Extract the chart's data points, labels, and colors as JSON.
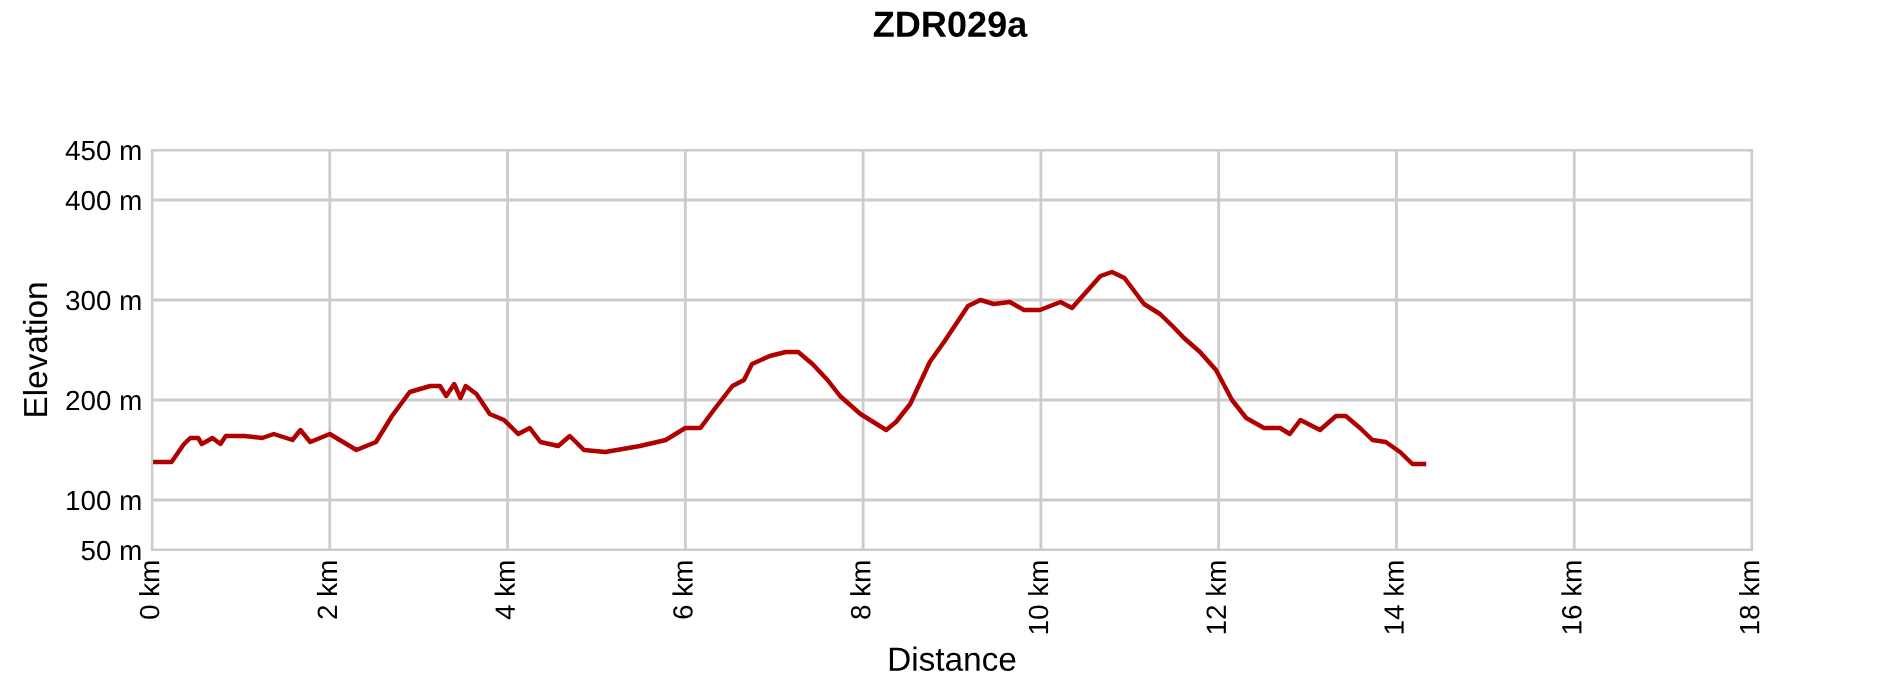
{
  "chart_data": {
    "type": "line",
    "title": "ZDR029a",
    "xlabel": "Distance",
    "ylabel": "Elevation",
    "x": [
      0,
      0.22,
      0.36,
      0.43,
      0.52,
      0.56,
      0.68,
      0.77,
      0.83,
      1.04,
      1.24,
      1.37,
      1.58,
      1.67,
      1.78,
      2.0,
      2.3,
      2.52,
      2.7,
      2.9,
      3.13,
      3.24,
      3.31,
      3.4,
      3.47,
      3.53,
      3.65,
      3.8,
      3.96,
      4.12,
      4.25,
      4.37,
      4.57,
      4.7,
      4.86,
      5.1,
      5.49,
      5.78,
      6.0,
      6.17,
      6.32,
      6.53,
      6.66,
      6.75,
      6.95,
      7.13,
      7.27,
      7.43,
      7.6,
      7.74,
      7.97,
      8.26,
      8.37,
      8.53,
      8.75,
      8.91,
      9.18,
      9.32,
      9.47,
      9.65,
      9.81,
      9.99,
      10.22,
      10.35,
      10.67,
      10.8,
      10.94,
      11.16,
      11.34,
      11.48,
      11.61,
      11.79,
      11.97,
      12.15,
      12.31,
      12.51,
      12.69,
      12.8,
      12.92,
      13.14,
      13.32,
      13.43,
      13.59,
      13.73,
      13.88,
      14.04,
      14.18,
      14.31
    ],
    "series": [
      {
        "color": "#b00000",
        "values": [
          138,
          138,
          156,
          162,
          162,
          156,
          162,
          156,
          164,
          164,
          162,
          166,
          160,
          170,
          158,
          166,
          150,
          158,
          184,
          208,
          214,
          214,
          204,
          216,
          202,
          214,
          206,
          186,
          180,
          166,
          172,
          158,
          154,
          164,
          150,
          148,
          154,
          160,
          172,
          172,
          190,
          214,
          220,
          236,
          244,
          248,
          248,
          236,
          220,
          204,
          186,
          170,
          178,
          196,
          238,
          258,
          294,
          300,
          296,
          298,
          290,
          290,
          298,
          292,
          324,
          328,
          322,
          296,
          286,
          274,
          262,
          248,
          230,
          200,
          182,
          172,
          172,
          166,
          180,
          170,
          184,
          184,
          172,
          160,
          158,
          148,
          136,
          136
        ]
      }
    ],
    "xlim": [
      0,
      18
    ],
    "xticks": [
      {
        "value": 0,
        "label": "0 km"
      },
      {
        "value": 2,
        "label": "2 km"
      },
      {
        "value": 4,
        "label": "4 km"
      },
      {
        "value": 6,
        "label": "6 km"
      },
      {
        "value": 8,
        "label": "8 km"
      },
      {
        "value": 10,
        "label": "10 km"
      },
      {
        "value": 12,
        "label": "12 km"
      },
      {
        "value": 14,
        "label": "14 km"
      },
      {
        "value": 16,
        "label": "16 km"
      },
      {
        "value": 18,
        "label": "18 km"
      }
    ],
    "ylim": [
      50,
      450
    ],
    "yticks": [
      {
        "value": 50,
        "label": "50 m"
      },
      {
        "value": 100,
        "label": "100 m"
      },
      {
        "value": 200,
        "label": "200 m"
      },
      {
        "value": 300,
        "label": "300 m"
      },
      {
        "value": 400,
        "label": "400 m"
      },
      {
        "value": 450,
        "label": "450 m"
      }
    ],
    "grid": true,
    "marker": "none",
    "line_style": "solid"
  }
}
